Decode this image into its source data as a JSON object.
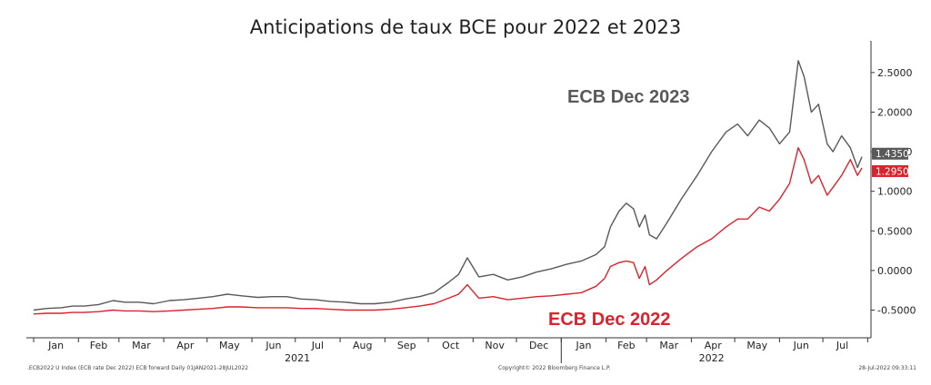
{
  "chart_data": {
    "type": "line",
    "title": "Anticipations de taux BCE pour 2022 et 2023",
    "xlabel": "",
    "ylabel": "",
    "x_range": [
      "2021-01-01",
      "2022-07-28"
    ],
    "ylim": [
      -0.85,
      2.9
    ],
    "y_ticks": [
      -0.5,
      0.0,
      0.5,
      1.0,
      1.5,
      2.0,
      2.5
    ],
    "y_tick_labels": [
      "-0.5000",
      "0.0000",
      "0.5000",
      "1.0000",
      "1.5000",
      "2.0000",
      "2.5000"
    ],
    "y_axis_side": "right",
    "grid": false,
    "x_month_labels": [
      "Jan",
      "Feb",
      "Mar",
      "Apr",
      "May",
      "Jun",
      "Jul",
      "Aug",
      "Sep",
      "Oct",
      "Nov",
      "Dec",
      "Jan",
      "Feb",
      "Mar",
      "Apr",
      "May",
      "Jun",
      "Jul"
    ],
    "x_year_labels": [
      "2021",
      "2022"
    ],
    "series": [
      {
        "name": "ECB Dec 2023",
        "color": "#595959",
        "last_value_label": "1.4350",
        "points": [
          [
            "2021-01-01",
            -0.5
          ],
          [
            "2021-01-10",
            -0.48
          ],
          [
            "2021-01-20",
            -0.47
          ],
          [
            "2021-01-28",
            -0.45
          ],
          [
            "2021-02-05",
            -0.45
          ],
          [
            "2021-02-15",
            -0.43
          ],
          [
            "2021-02-25",
            -0.38
          ],
          [
            "2021-03-05",
            -0.4
          ],
          [
            "2021-03-15",
            -0.4
          ],
          [
            "2021-03-25",
            -0.42
          ],
          [
            "2021-04-05",
            -0.38
          ],
          [
            "2021-04-15",
            -0.37
          ],
          [
            "2021-04-25",
            -0.35
          ],
          [
            "2021-05-05",
            -0.33
          ],
          [
            "2021-05-15",
            -0.3
          ],
          [
            "2021-05-25",
            -0.32
          ],
          [
            "2021-06-05",
            -0.34
          ],
          [
            "2021-06-15",
            -0.33
          ],
          [
            "2021-06-25",
            -0.33
          ],
          [
            "2021-07-05",
            -0.36
          ],
          [
            "2021-07-15",
            -0.37
          ],
          [
            "2021-07-25",
            -0.39
          ],
          [
            "2021-08-05",
            -0.4
          ],
          [
            "2021-08-15",
            -0.42
          ],
          [
            "2021-08-25",
            -0.42
          ],
          [
            "2021-09-05",
            -0.4
          ],
          [
            "2021-09-15",
            -0.36
          ],
          [
            "2021-09-25",
            -0.33
          ],
          [
            "2021-10-05",
            -0.28
          ],
          [
            "2021-10-15",
            -0.15
          ],
          [
            "2021-10-22",
            -0.05
          ],
          [
            "2021-10-28",
            0.16
          ],
          [
            "2021-11-05",
            -0.08
          ],
          [
            "2021-11-15",
            -0.05
          ],
          [
            "2021-11-25",
            -0.12
          ],
          [
            "2021-12-05",
            -0.08
          ],
          [
            "2021-12-15",
            -0.02
          ],
          [
            "2021-12-25",
            0.02
          ],
          [
            "2022-01-05",
            0.08
          ],
          [
            "2022-01-15",
            0.12
          ],
          [
            "2022-01-25",
            0.2
          ],
          [
            "2022-01-31",
            0.3
          ],
          [
            "2022-02-04",
            0.55
          ],
          [
            "2022-02-10",
            0.75
          ],
          [
            "2022-02-15",
            0.85
          ],
          [
            "2022-02-20",
            0.78
          ],
          [
            "2022-02-24",
            0.55
          ],
          [
            "2022-02-28",
            0.7
          ],
          [
            "2022-03-03",
            0.45
          ],
          [
            "2022-03-08",
            0.4
          ],
          [
            "2022-03-15",
            0.6
          ],
          [
            "2022-03-25",
            0.9
          ],
          [
            "2022-04-05",
            1.2
          ],
          [
            "2022-04-15",
            1.5
          ],
          [
            "2022-04-25",
            1.75
          ],
          [
            "2022-05-03",
            1.85
          ],
          [
            "2022-05-10",
            1.7
          ],
          [
            "2022-05-18",
            1.9
          ],
          [
            "2022-05-25",
            1.8
          ],
          [
            "2022-06-01",
            1.6
          ],
          [
            "2022-06-08",
            1.75
          ],
          [
            "2022-06-14",
            2.65
          ],
          [
            "2022-06-18",
            2.45
          ],
          [
            "2022-06-23",
            2.0
          ],
          [
            "2022-06-28",
            2.1
          ],
          [
            "2022-07-04",
            1.6
          ],
          [
            "2022-07-08",
            1.5
          ],
          [
            "2022-07-14",
            1.7
          ],
          [
            "2022-07-20",
            1.55
          ],
          [
            "2022-07-25",
            1.3
          ],
          [
            "2022-07-28",
            1.435
          ]
        ]
      },
      {
        "name": "ECB Dec 2022",
        "color": "#d9232d",
        "last_value_label": "1.2950",
        "points": [
          [
            "2021-01-01",
            -0.55
          ],
          [
            "2021-01-10",
            -0.54
          ],
          [
            "2021-01-20",
            -0.54
          ],
          [
            "2021-01-28",
            -0.53
          ],
          [
            "2021-02-05",
            -0.53
          ],
          [
            "2021-02-15",
            -0.52
          ],
          [
            "2021-02-25",
            -0.5
          ],
          [
            "2021-03-05",
            -0.51
          ],
          [
            "2021-03-15",
            -0.51
          ],
          [
            "2021-03-25",
            -0.52
          ],
          [
            "2021-04-05",
            -0.51
          ],
          [
            "2021-04-15",
            -0.5
          ],
          [
            "2021-04-25",
            -0.49
          ],
          [
            "2021-05-05",
            -0.48
          ],
          [
            "2021-05-15",
            -0.46
          ],
          [
            "2021-05-25",
            -0.46
          ],
          [
            "2021-06-05",
            -0.47
          ],
          [
            "2021-06-15",
            -0.47
          ],
          [
            "2021-06-25",
            -0.47
          ],
          [
            "2021-07-05",
            -0.48
          ],
          [
            "2021-07-15",
            -0.48
          ],
          [
            "2021-07-25",
            -0.49
          ],
          [
            "2021-08-05",
            -0.5
          ],
          [
            "2021-08-15",
            -0.5
          ],
          [
            "2021-08-25",
            -0.5
          ],
          [
            "2021-09-05",
            -0.49
          ],
          [
            "2021-09-15",
            -0.47
          ],
          [
            "2021-09-25",
            -0.45
          ],
          [
            "2021-10-05",
            -0.42
          ],
          [
            "2021-10-15",
            -0.35
          ],
          [
            "2021-10-22",
            -0.3
          ],
          [
            "2021-10-28",
            -0.18
          ],
          [
            "2021-11-05",
            -0.35
          ],
          [
            "2021-11-15",
            -0.33
          ],
          [
            "2021-11-25",
            -0.37
          ],
          [
            "2021-12-05",
            -0.35
          ],
          [
            "2021-12-15",
            -0.33
          ],
          [
            "2021-12-25",
            -0.32
          ],
          [
            "2022-01-05",
            -0.3
          ],
          [
            "2022-01-15",
            -0.28
          ],
          [
            "2022-01-25",
            -0.2
          ],
          [
            "2022-01-31",
            -0.1
          ],
          [
            "2022-02-04",
            0.05
          ],
          [
            "2022-02-10",
            0.1
          ],
          [
            "2022-02-15",
            0.12
          ],
          [
            "2022-02-20",
            0.1
          ],
          [
            "2022-02-24",
            -0.1
          ],
          [
            "2022-02-28",
            0.05
          ],
          [
            "2022-03-03",
            -0.18
          ],
          [
            "2022-03-08",
            -0.12
          ],
          [
            "2022-03-15",
            0.0
          ],
          [
            "2022-03-25",
            0.15
          ],
          [
            "2022-04-05",
            0.3
          ],
          [
            "2022-04-15",
            0.4
          ],
          [
            "2022-04-25",
            0.55
          ],
          [
            "2022-05-03",
            0.65
          ],
          [
            "2022-05-10",
            0.65
          ],
          [
            "2022-05-18",
            0.8
          ],
          [
            "2022-05-25",
            0.75
          ],
          [
            "2022-06-01",
            0.9
          ],
          [
            "2022-06-08",
            1.1
          ],
          [
            "2022-06-14",
            1.55
          ],
          [
            "2022-06-18",
            1.4
          ],
          [
            "2022-06-23",
            1.1
          ],
          [
            "2022-06-28",
            1.2
          ],
          [
            "2022-07-04",
            0.95
          ],
          [
            "2022-07-08",
            1.05
          ],
          [
            "2022-07-14",
            1.2
          ],
          [
            "2022-07-20",
            1.4
          ],
          [
            "2022-07-25",
            1.2
          ],
          [
            "2022-07-28",
            1.295
          ]
        ]
      }
    ]
  },
  "footer": {
    "left": ".ECB2022 U Index (ECB rate Dec 2022) ECB forward  Daily 01JAN2021-28JUL2022",
    "center": "Copyright© 2022 Bloomberg Finance L.P.",
    "right": "28-Jul-2022 09:33:11"
  }
}
